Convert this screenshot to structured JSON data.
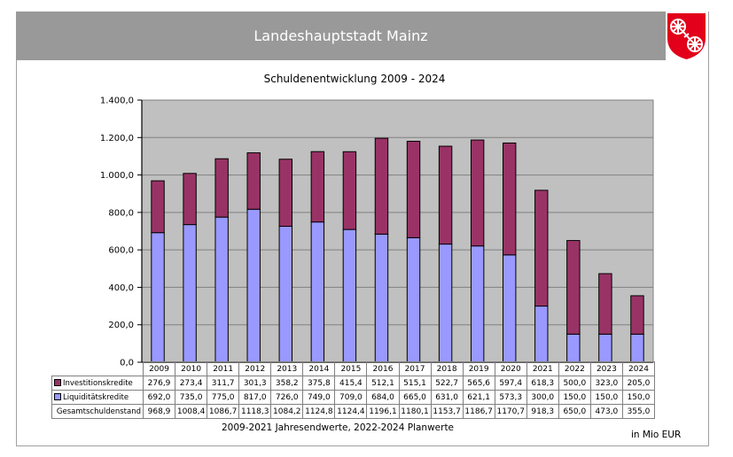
{
  "header": {
    "title": "Landeshauptstadt Mainz",
    "logo": "mainz-wheel-coat-of-arms-icon"
  },
  "colors": {
    "header_bg": "#999999",
    "plot_bg": "#c0c0c0",
    "investition": "#993366",
    "liquiditaet": "#9999ff",
    "logo_red": "#e2001a"
  },
  "footnote": "2009-2021 Jahresendwerte, 2022-2024 Planwerte",
  "unit": "in Mio EUR",
  "chart_data": {
    "type": "bar",
    "stacked": true,
    "title": "Schuldenentwicklung 2009 - 2024",
    "xlabel": "",
    "ylabel": "",
    "ylim": [
      0,
      1400
    ],
    "yticks": [
      0,
      200,
      400,
      600,
      800,
      1000,
      1200,
      1400
    ],
    "ytick_labels": [
      "0,0",
      "200,0",
      "400,0",
      "600,0",
      "800,0",
      "1.000,0",
      "1.200,0",
      "1.400,0"
    ],
    "grid": true,
    "legend": "data-table",
    "categories": [
      "2009",
      "2010",
      "2011",
      "2012",
      "2013",
      "2014",
      "2015",
      "2016",
      "2017",
      "2018",
      "2019",
      "2020",
      "2021",
      "2022",
      "2023",
      "2024"
    ],
    "series": [
      {
        "name": "Investitionskredite",
        "values": [
          276.9,
          273.4,
          311.7,
          301.3,
          358.2,
          375.8,
          415.4,
          512.1,
          515.1,
          522.7,
          565.6,
          597.4,
          618.3,
          500.0,
          323.0,
          205.0
        ],
        "labels": [
          "276,9",
          "273,4",
          "311,7",
          "301,3",
          "358,2",
          "375,8",
          "415,4",
          "512,1",
          "515,1",
          "522,7",
          "565,6",
          "597,4",
          "618,3",
          "500,0",
          "323,0",
          "205,0"
        ]
      },
      {
        "name": "Liquiditätskredite",
        "values": [
          692.0,
          735.0,
          775.0,
          817.0,
          726.0,
          749.0,
          709.0,
          684.0,
          665.0,
          631.0,
          621.1,
          573.3,
          300.0,
          150.0,
          150.0,
          150.0
        ],
        "labels": [
          "692,0",
          "735,0",
          "775,0",
          "817,0",
          "726,0",
          "749,0",
          "709,0",
          "684,0",
          "665,0",
          "631,0",
          "621,1",
          "573,3",
          "300,0",
          "150,0",
          "150,0",
          "150,0"
        ]
      }
    ],
    "totals": {
      "name": "Gesamtschuldenstand",
      "values": [
        968.9,
        1008.4,
        1086.7,
        1118.3,
        1084.2,
        1124.8,
        1124.4,
        1196.1,
        1180.1,
        1153.7,
        1186.7,
        1170.7,
        918.3,
        650.0,
        473.0,
        355.0
      ],
      "labels": [
        "968,9",
        "1008,4",
        "1086,7",
        "1118,3",
        "1084,2",
        "1124,8",
        "1124,4",
        "1196,1",
        "1180,1",
        "1153,7",
        "1186,7",
        "1170,7",
        "918,3",
        "650,0",
        "473,0",
        "355,0"
      ]
    }
  }
}
